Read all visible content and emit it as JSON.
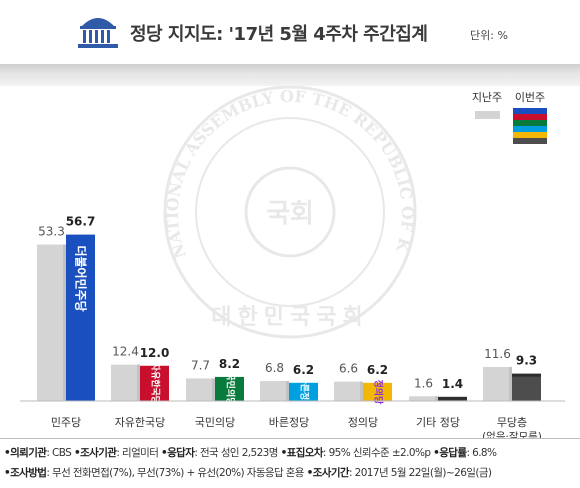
{
  "header": {
    "title": "정당 지지도: '17년 5월 4주차 주간집계",
    "unit": "단위: %"
  },
  "legend": {
    "prev_label": "지난주",
    "curr_label": "이번주"
  },
  "colors": {
    "prev_bar": "#d4d4d4",
    "curr_bar": "#4d4d4d",
    "minjoo": "#1a4fbf",
    "jayu": "#c8102e",
    "gukmin": "#077a3c",
    "bareun": "#00a0e0",
    "jeongui": "#f2b705",
    "legend_band": [
      "#1a4fbf",
      "#c8102e",
      "#077a3c",
      "#00a0e0",
      "#f2b705",
      "#4d4d4d"
    ]
  },
  "chart_data": {
    "type": "bar",
    "categories": [
      "민주당",
      "자유한국당",
      "국민의당",
      "바른정당",
      "정의당",
      "기타 정당",
      "무당층"
    ],
    "category_sublabels": [
      "",
      "",
      "",
      "",
      "",
      "",
      "(없음·잘모름)"
    ],
    "series": [
      {
        "name": "지난주",
        "values": [
          53.3,
          12.4,
          7.7,
          6.8,
          6.6,
          1.6,
          11.6
        ],
        "labels": [
          "53.3",
          "12.4",
          "7.7",
          "6.8",
          "6.6",
          "1.6",
          "11.6"
        ]
      },
      {
        "name": "이번주",
        "values": [
          56.7,
          12.0,
          8.2,
          6.2,
          6.2,
          1.4,
          9.3
        ],
        "labels": [
          "56.7",
          "12.0",
          "8.2",
          "6.2",
          "6.2",
          "1.4",
          "9.3"
        ]
      }
    ],
    "bar_party_names": [
      "더불어민주당",
      "자유한국당",
      "국민의당",
      "바른정당",
      "정의당",
      "",
      ""
    ],
    "ylim": [
      0,
      60
    ],
    "grid": false,
    "legend_position": "top-right"
  },
  "watermark": {
    "ring_text": "THE NATIONAL ASSEMBLY OF THE REPUBLIC OF KOREA",
    "bottom_text": "대한민국국회",
    "center_text": "국회"
  },
  "footer": {
    "line1": [
      {
        "label": "•의뢰기관",
        "text": ": CBS "
      },
      {
        "label": "•조사기관",
        "text": ": 리얼미터 "
      },
      {
        "label": "•응답자",
        "text": ": 전국 성인 2,523명 "
      },
      {
        "label": "•표집오차",
        "text": ": 95% 신뢰수준 ±2.0%p "
      },
      {
        "label": "•응답률",
        "text": ": 6.8%"
      }
    ],
    "line2": [
      {
        "label": "•조사방법",
        "text": ": 무선 전화면접(7%), 무선(73%) + 유선(20%) 자동응답 혼용  "
      },
      {
        "label": "•조사기간",
        "text": ": 2017년 5월 22일(월)~26일(금)"
      }
    ]
  }
}
